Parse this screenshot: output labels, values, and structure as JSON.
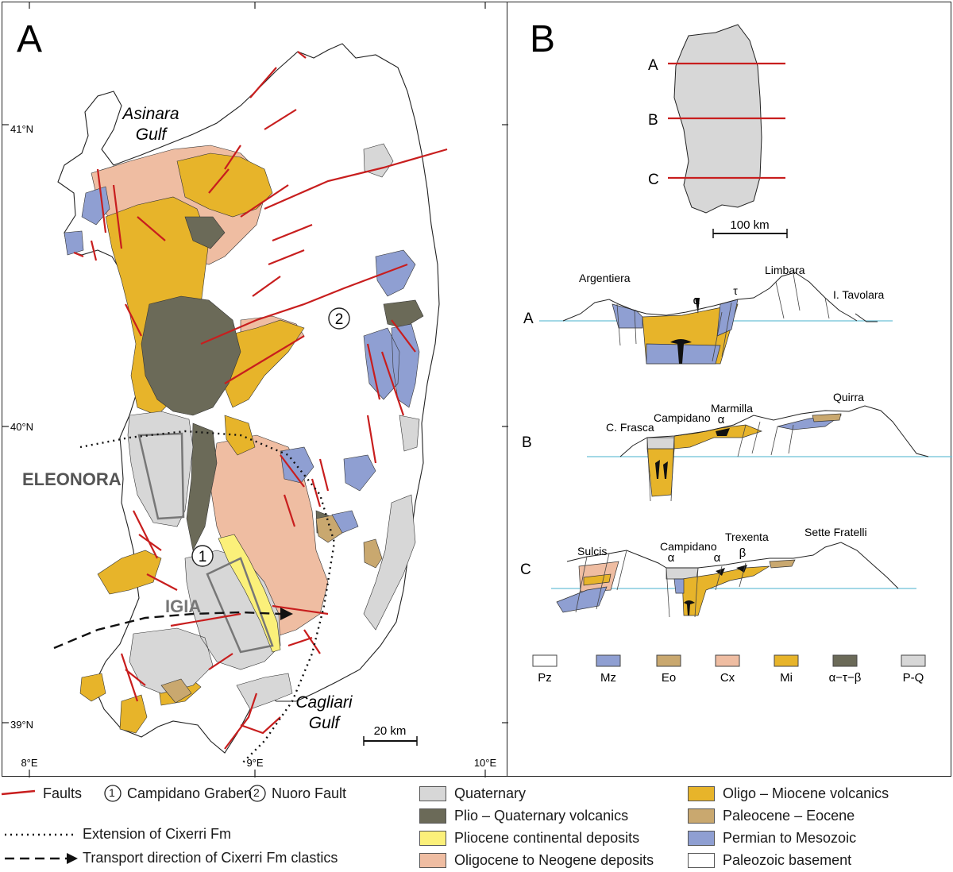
{
  "panel_a": {
    "letter": "A",
    "labels": {
      "asinara": [
        "Asinara",
        "Gulf"
      ],
      "cagliari": [
        "Cagliari",
        "Gulf"
      ],
      "eleonora": "ELEONORA",
      "igia": "IGIA",
      "marker1": "1",
      "marker2": "2"
    },
    "lat_ticks": [
      "41°N",
      "40°N",
      "39°N"
    ],
    "lon_ticks": [
      "8°E",
      "9°E",
      "10°E"
    ],
    "scale_label": "20 km"
  },
  "panel_b": {
    "letter": "B",
    "index_lines": [
      "A",
      "B",
      "C"
    ],
    "scale_label": "100 km",
    "sections": {
      "A": {
        "label": "A",
        "places": [
          "Argentiera",
          "Limbara",
          "I. Tavolara"
        ],
        "symbols": [
          "α",
          "τ"
        ]
      },
      "B": {
        "label": "B",
        "places": [
          "C. Frasca",
          "Campidano",
          "Marmilla",
          "Quirra"
        ],
        "symbols": [
          "α"
        ]
      },
      "C": {
        "label": "C",
        "places": [
          "Sulcis",
          "Campidano",
          "Trexenta",
          "Sette Fratelli"
        ],
        "symbols": [
          "α",
          "α",
          "β"
        ]
      }
    },
    "unit_legend": [
      "Pz",
      "Mz",
      "Eo",
      "Cx",
      "Mi",
      "α−τ−β",
      "P-Q"
    ]
  },
  "legend": {
    "faults": "Faults",
    "campidano": "Campidano Graben",
    "nuoro": "Nuoro Fault",
    "num1": "1",
    "num2": "2",
    "cixerri_ext": "Extension of Cixerri Fm",
    "cixerri_transport": "Transport direction of Cixerri Fm clastics",
    "units": [
      {
        "label": "Quaternary",
        "color": "#d7d7d7"
      },
      {
        "label": "Plio – Quaternary volcanics",
        "color": "#6b6a58"
      },
      {
        "label": "Pliocene continental deposits",
        "color": "#fbf07a"
      },
      {
        "label": "Oligocene to Neogene deposits",
        "color": "#efbda2"
      },
      {
        "label": "Oligo – Miocene volcanics",
        "color": "#e7b42a"
      },
      {
        "label": "Paleocene – Eocene",
        "color": "#c9a86f"
      },
      {
        "label": "Permian to Mesozoic",
        "color": "#8f9fd2"
      },
      {
        "label": "Paleozoic basement",
        "color": "#ffffff"
      }
    ]
  },
  "colors": {
    "fault": "#c81e1e",
    "sea_level": "#6cc0d8"
  }
}
